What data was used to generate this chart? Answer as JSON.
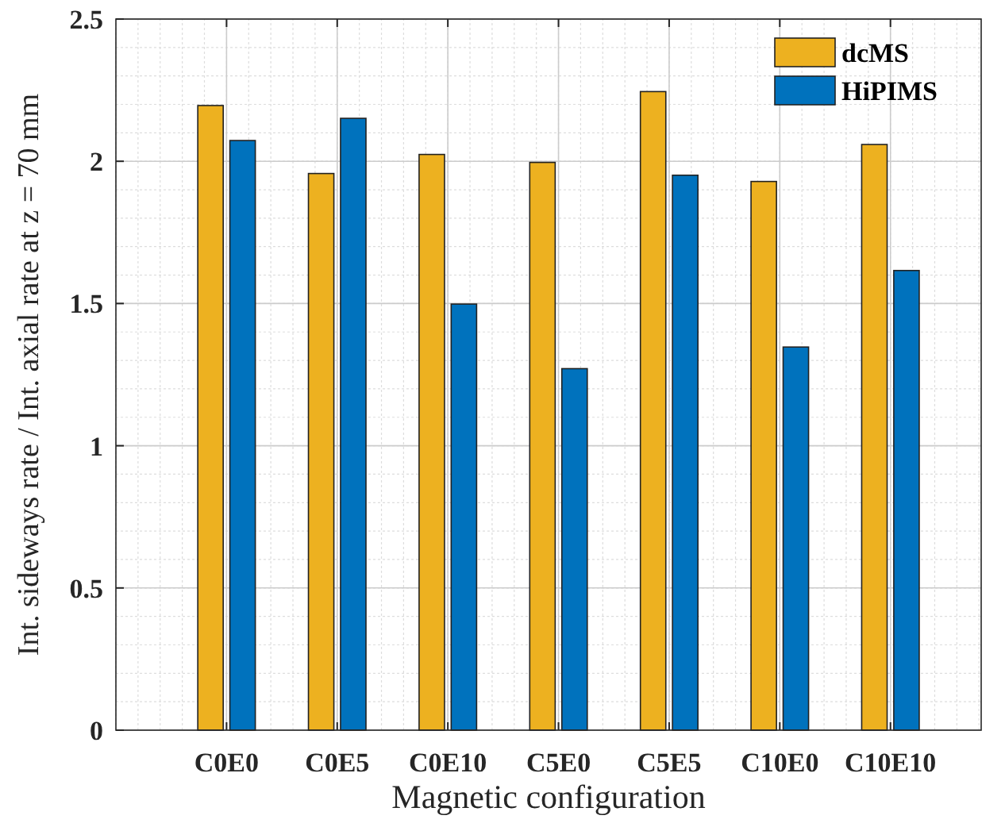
{
  "chart_data": {
    "type": "bar",
    "xlabel": "Magnetic configuration",
    "ylabel": "Int. sideways rate / Int. axial rate at z = 70 mm",
    "categories": [
      "C0E0",
      "C0E5",
      "C0E10",
      "C5E0",
      "C5E5",
      "C10E0",
      "C10E10"
    ],
    "series": [
      {
        "name": "dcMS",
        "color": "#edb120",
        "values": [
          2.196,
          1.957,
          2.024,
          1.996,
          2.245,
          1.929,
          2.059
        ]
      },
      {
        "name": "HiPIMS",
        "color": "#0072bd",
        "values": [
          2.073,
          2.151,
          1.498,
          1.271,
          1.951,
          1.347,
          1.616
        ]
      }
    ],
    "ylim": [
      0,
      2.5
    ],
    "yticks": [
      0,
      0.5,
      1,
      1.5,
      2,
      2.5
    ],
    "grid": true,
    "legend": "top right"
  }
}
